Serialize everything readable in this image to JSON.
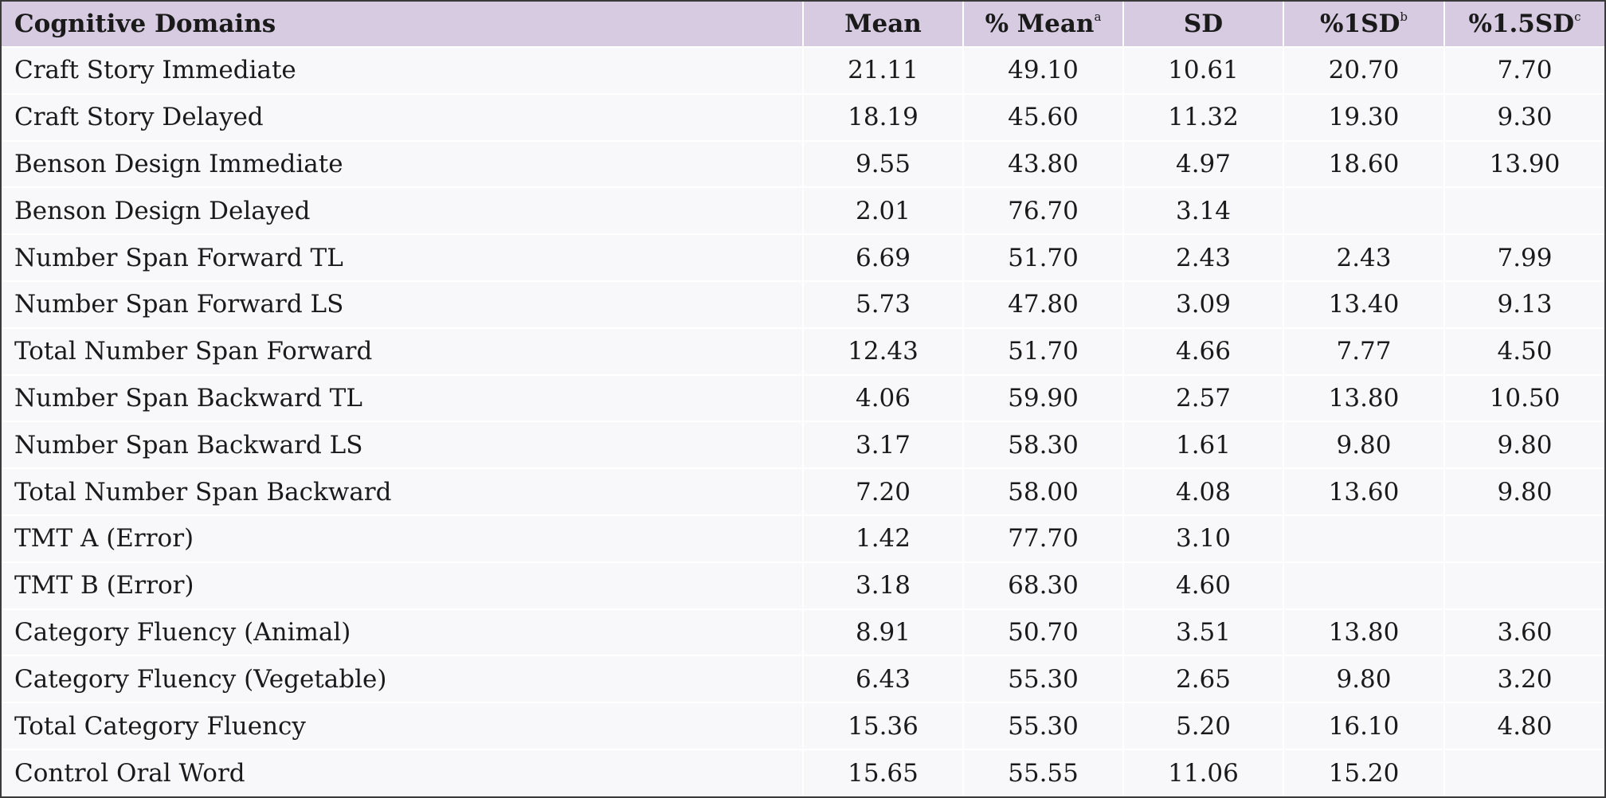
{
  "table": {
    "headers": [
      {
        "label": "Cognitive Domains",
        "sup": ""
      },
      {
        "label": "Mean",
        "sup": ""
      },
      {
        "label": "% Mean",
        "sup": "a"
      },
      {
        "label": "SD",
        "sup": ""
      },
      {
        "label": "%1SD",
        "sup": "b"
      },
      {
        "label": "%1.5SD",
        "sup": "c"
      }
    ],
    "rows": [
      [
        "Craft Story Immediate",
        "21.11",
        "49.10",
        "10.61",
        "20.70",
        "7.70"
      ],
      [
        "Craft Story Delayed",
        "18.19",
        "45.60",
        "11.32",
        "19.30",
        "9.30"
      ],
      [
        "Benson Design Immediate",
        "9.55",
        "43.80",
        "4.97",
        "18.60",
        "13.90"
      ],
      [
        "Benson Design Delayed",
        "2.01",
        "76.70",
        "3.14",
        "",
        ""
      ],
      [
        "Number Span Forward TL",
        "6.69",
        "51.70",
        "2.43",
        "2.43",
        "7.99"
      ],
      [
        "Number Span Forward LS",
        "5.73",
        "47.80",
        "3.09",
        "13.40",
        "9.13"
      ],
      [
        "Total Number Span Forward",
        "12.43",
        "51.70",
        "4.66",
        "7.77",
        "4.50"
      ],
      [
        "Number Span Backward TL",
        "4.06",
        "59.90",
        "2.57",
        "13.80",
        "10.50"
      ],
      [
        "Number Span Backward LS",
        "3.17",
        "58.30",
        "1.61",
        "9.80",
        "9.80"
      ],
      [
        "Total Number Span Backward",
        "7.20",
        "58.00",
        "4.08",
        "13.60",
        "9.80"
      ],
      [
        "TMT A (Error)",
        "1.42",
        "77.70",
        "3.10",
        "",
        ""
      ],
      [
        "TMT B (Error)",
        "3.18",
        "68.30",
        "4.60",
        "",
        ""
      ],
      [
        "Category Fluency (Animal)",
        "8.91",
        "50.70",
        "3.51",
        "13.80",
        "3.60"
      ],
      [
        "Category Fluency (Vegetable)",
        "6.43",
        "55.30",
        "2.65",
        "9.80",
        "3.20"
      ],
      [
        "Total Category Fluency",
        "15.36",
        "55.30",
        "5.20",
        "16.10",
        "4.80"
      ],
      [
        "Control Oral Word",
        "15.65",
        "55.55",
        "11.06",
        "15.20",
        ""
      ]
    ]
  }
}
